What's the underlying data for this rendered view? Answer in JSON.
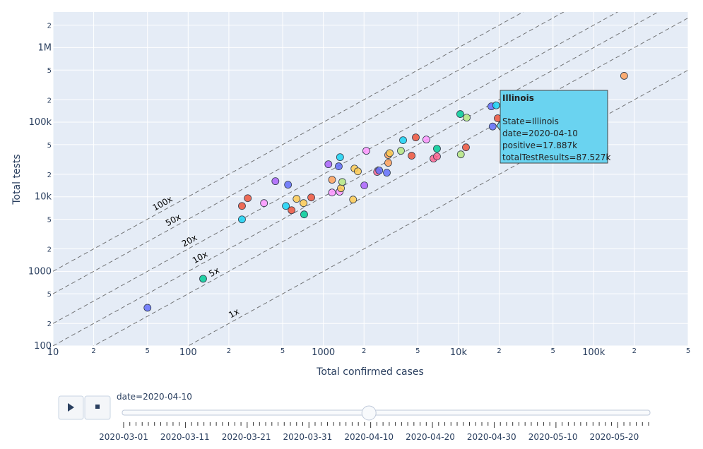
{
  "chart_data": {
    "type": "scatter",
    "x_label": "Total confirmed cases",
    "y_label": "Total tests",
    "xlog": true,
    "ylog": true,
    "grid": true,
    "xlim": [
      10,
      500000
    ],
    "ylim": [
      100,
      3000000
    ],
    "xticks": [
      10,
      {
        "value": 20,
        "label": "2"
      },
      {
        "value": 50,
        "label": "5"
      },
      100,
      {
        "value": 200,
        "label": "2"
      },
      {
        "value": 500,
        "label": "5"
      },
      1000,
      {
        "value": 2000,
        "label": "2"
      },
      {
        "value": 5000,
        "label": "5"
      },
      {
        "value": 10000,
        "label": "10k"
      },
      {
        "value": 20000,
        "label": "2"
      },
      {
        "value": 50000,
        "label": "5"
      },
      {
        "value": 100000,
        "label": "100k"
      },
      {
        "value": 200000,
        "label": "2"
      },
      {
        "value": 500000,
        "label": "5"
      }
    ],
    "yticks": [
      100,
      {
        "value": 200,
        "label": "2"
      },
      {
        "value": 500,
        "label": "5"
      },
      1000,
      {
        "value": 2000,
        "label": "2"
      },
      {
        "value": 5000,
        "label": "5"
      },
      {
        "value": 10000,
        "label": "10k"
      },
      {
        "value": 20000,
        "label": "2"
      },
      {
        "value": 50000,
        "label": "5"
      },
      {
        "value": 100000,
        "label": "100k"
      },
      {
        "value": 200000,
        "label": "2"
      },
      {
        "value": 500000,
        "label": "5"
      },
      {
        "value": 1000000,
        "label": "1M"
      },
      {
        "value": 2000000,
        "label": "2"
      }
    ],
    "reference_lines": [
      {
        "label": "100x",
        "ratio": 100
      },
      {
        "label": "50x",
        "ratio": 50
      },
      {
        "label": "20x",
        "ratio": 20
      },
      {
        "label": "10x",
        "ratio": 10
      },
      {
        "label": "5x",
        "ratio": 5
      },
      {
        "label": "1x",
        "ratio": 1
      }
    ],
    "x": [
      50,
      129,
      250,
      250,
      276,
      364,
      442,
      548,
      528,
      582,
      634,
      714,
      721,
      814,
      1090,
      1160,
      1160,
      1320,
      1350,
      1380,
      1300,
      1330,
      1660,
      1700,
      1800,
      2010,
      2080,
      2500,
      2590,
      2950,
      3020,
      3020,
      3100,
      3750,
      3890,
      4500,
      4830,
      5780,
      6530,
      6930,
      6930,
      10400,
      11350,
      10300,
      11500,
      17500,
      19000,
      19500,
      168000,
      17887
    ],
    "values": [
      325,
      795,
      4970,
      7530,
      9570,
      8220,
      16170,
      14500,
      7530,
      6600,
      9370,
      8220,
      5800,
      9790,
      27300,
      16900,
      11400,
      11700,
      13000,
      15800,
      25600,
      33950,
      9170,
      23900,
      21900,
      14200,
      41300,
      21500,
      22500,
      21000,
      28500,
      36300,
      38500,
      41300,
      57300,
      35500,
      62500,
      58500,
      32500,
      34700,
      44100,
      37000,
      46000,
      128500,
      115000,
      163000,
      168000,
      112800,
      418000,
      87527
    ],
    "colors": [
      "#636efa",
      "#00cc96",
      "#19d3f3",
      "#ef553b",
      "#ef553b",
      "#ff97ff",
      "#ab63fa",
      "#636efa",
      "#19d3f3",
      "#ef553b",
      "#fecb52",
      "#fecb52",
      "#00cc96",
      "#ef553b",
      "#ab63fa",
      "#ffa15a",
      "#ff97ff",
      "#ff97ff",
      "#fecb52",
      "#b6e880",
      "#636efa",
      "#19d3f3",
      "#fecb52",
      "#fecb52",
      "#fecb52",
      "#ab63fa",
      "#ff97ff",
      "#ff6692",
      "#636efa",
      "#636efa",
      "#ffa15a",
      "#ffa15a",
      "#fecb52",
      "#b6e880",
      "#19d3f3",
      "#ef553b",
      "#ef553b",
      "#ff97ff",
      "#ff6692",
      "#ff6692",
      "#00cc96",
      "#b6e880",
      "#ef553b",
      "#00cc96",
      "#b6e880",
      "#636efa",
      "#19d3f3",
      "#ef553b",
      "#ffa15a",
      "#636efa"
    ],
    "tooltip": {
      "title": "Illinois",
      "lines": [
        "State=Illinois",
        "date=2020-04-10",
        "positive=17.887k",
        "totalTestResults=87.527k"
      ]
    },
    "slider": {
      "prefix": "date=",
      "current": "2020-04-10",
      "labels": [
        "2020-03-01",
        "2020-03-11",
        "2020-03-21",
        "2020-03-31",
        "2020-04-10",
        "2020-04-20",
        "2020-04-30",
        "2020-05-10",
        "2020-05-20"
      ]
    }
  }
}
